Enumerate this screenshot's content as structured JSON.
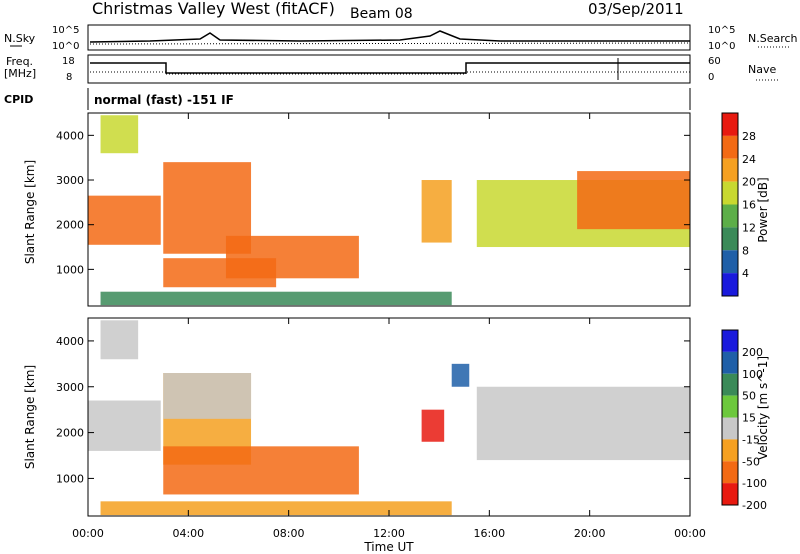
{
  "header": {
    "title": "Christmas Valley West (fitACF)",
    "beam": "Beam 08",
    "date": "03/Sep/2011"
  },
  "status_panels": {
    "nsky": {
      "label": "N.Sky",
      "ticks_left": [
        "10^5",
        "10^0"
      ]
    },
    "nsearch": {
      "label": "N.Search",
      "ticks_right": [
        "10^5",
        "10^0"
      ]
    },
    "freq": {
      "label_line1": "Freq.",
      "label_line2": "[MHz]",
      "ticks_left": [
        "18",
        "8"
      ]
    },
    "nave": {
      "label": "Nave",
      "ticks_right": [
        "60",
        "0"
      ]
    },
    "cpid": {
      "label": "CPID",
      "text": "normal (fast) -151 IF"
    }
  },
  "chart_data": [
    {
      "type": "heatmap",
      "id": "power",
      "xlabel": "",
      "ylabel": "Slant Range [km]",
      "colorbar_label": "Power [dB]",
      "x_range": [
        0,
        24
      ],
      "y_range": [
        180,
        4500
      ],
      "y_ticks": [
        "1000",
        "2000",
        "3000",
        "4000"
      ],
      "colorbar_ticks": [
        "4",
        "8",
        "12",
        "16",
        "20",
        "24",
        "28"
      ],
      "colorbar_range": [
        0,
        32
      ],
      "colors": [
        "#1a1adc",
        "#1f5fa8",
        "#3a8a58",
        "#5cae48",
        "#c8d830",
        "#f5a020",
        "#f36a14",
        "#e81a10"
      ],
      "regions": [
        {
          "t": [
            0.0,
            2.9
          ],
          "r": [
            1550,
            2650
          ],
          "value": 27
        },
        {
          "t": [
            0.5,
            2.0
          ],
          "r": [
            3600,
            4450
          ],
          "value": 17
        },
        {
          "t": [
            3.0,
            6.5
          ],
          "r": [
            1350,
            3400
          ],
          "value": 27
        },
        {
          "t": [
            3.0,
            7.5
          ],
          "r": [
            600,
            1250
          ],
          "value": 27
        },
        {
          "t": [
            5.5,
            10.8
          ],
          "r": [
            800,
            1750
          ],
          "value": 25
        },
        {
          "t": [
            13.3,
            14.5
          ],
          "r": [
            1600,
            3000
          ],
          "value": 20
        },
        {
          "t": [
            15.5,
            24.0
          ],
          "r": [
            1500,
            3000
          ],
          "value": 17
        },
        {
          "t": [
            19.5,
            24.0
          ],
          "r": [
            1900,
            3200
          ],
          "value": 27
        },
        {
          "t": [
            0.5,
            14.5
          ],
          "r": [
            200,
            500
          ],
          "value": 10
        }
      ]
    },
    {
      "type": "heatmap",
      "id": "velocity",
      "xlabel": "Time UT",
      "ylabel": "Slant Range [km]",
      "colorbar_label": "Velocity [m s^-1]",
      "x_range": [
        0,
        24
      ],
      "y_range": [
        180,
        4500
      ],
      "x_ticks": [
        "00:00",
        "04:00",
        "08:00",
        "12:00",
        "16:00",
        "20:00",
        "00:00"
      ],
      "y_ticks": [
        "1000",
        "2000",
        "3000",
        "4000"
      ],
      "colorbar_ticks": [
        "200",
        "100",
        "50",
        "15",
        "-15",
        "-50",
        "-100",
        "-200"
      ],
      "colors": [
        "#1a1adc",
        "#1f5fa8",
        "#3a8a58",
        "#6cc83c",
        "#c8c8c8",
        "#f5a020",
        "#f36a14",
        "#e81a10"
      ],
      "regions": [
        {
          "t": [
            0.0,
            2.9
          ],
          "r": [
            1600,
            2700
          ],
          "value": 0
        },
        {
          "t": [
            0.5,
            2.0
          ],
          "r": [
            3600,
            4450
          ],
          "value": 0
        },
        {
          "t": [
            3.0,
            6.5
          ],
          "r": [
            1300,
            3300
          ],
          "value": -40
        },
        {
          "t": [
            3.0,
            6.5
          ],
          "r": [
            2300,
            3300
          ],
          "value": 0
        },
        {
          "t": [
            3.0,
            10.8
          ],
          "r": [
            650,
            1700
          ],
          "value": -60
        },
        {
          "t": [
            13.3,
            14.2
          ],
          "r": [
            1800,
            2500
          ],
          "value": -180
        },
        {
          "t": [
            14.5,
            15.2
          ],
          "r": [
            3000,
            3500
          ],
          "value": 180
        },
        {
          "t": [
            15.5,
            24.0
          ],
          "r": [
            1400,
            3000
          ],
          "value": 0
        },
        {
          "t": [
            0.5,
            14.5
          ],
          "r": [
            200,
            500
          ],
          "value": -50
        }
      ]
    }
  ]
}
